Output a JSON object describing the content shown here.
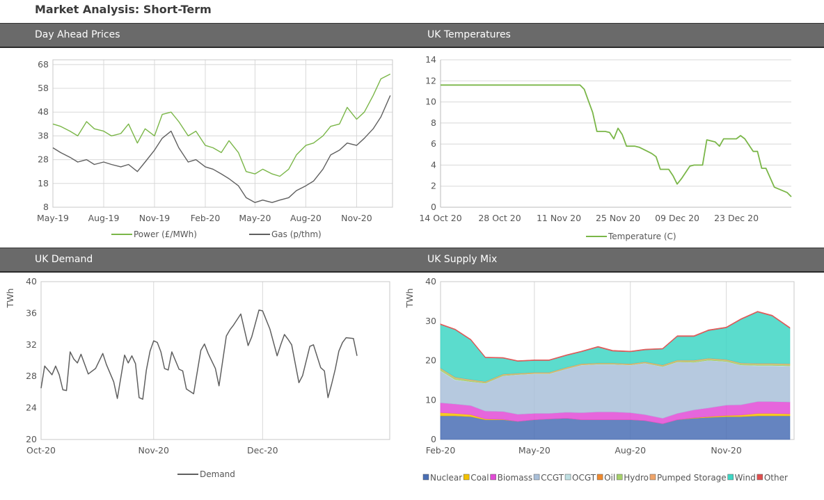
{
  "page": {
    "title": "Market Analysis: Short-Term"
  },
  "chart_data": [
    {
      "id": "prices",
      "type": "line",
      "title": "Day Ahead Prices",
      "x_start": "2019-05-01",
      "x_end": "2021-01-05",
      "y_ticks": [
        8,
        18,
        28,
        38,
        48,
        58,
        68
      ],
      "ylim": [
        8,
        70
      ],
      "x_ticks": [
        {
          "label": "May-19",
          "date": "2019-05-01"
        },
        {
          "label": "Aug-19",
          "date": "2019-08-01"
        },
        {
          "label": "Nov-19",
          "date": "2019-11-01"
        },
        {
          "label": "Feb-20",
          "date": "2020-02-01"
        },
        {
          "label": "May-20",
          "date": "2020-05-01"
        },
        {
          "label": "Aug-20",
          "date": "2020-08-01"
        },
        {
          "label": "Nov-20",
          "date": "2020-11-01"
        }
      ],
      "grid": true,
      "legend": "bottom",
      "series": [
        {
          "name": "Power (£/MWh)",
          "color": "#7ab648",
          "x": [
            "2019-05-01",
            "2019-05-15",
            "2019-06-01",
            "2019-06-15",
            "2019-07-01",
            "2019-07-15",
            "2019-08-01",
            "2019-08-15",
            "2019-09-01",
            "2019-09-15",
            "2019-10-01",
            "2019-10-15",
            "2019-11-01",
            "2019-11-15",
            "2019-12-01",
            "2019-12-15",
            "2020-01-01",
            "2020-01-15",
            "2020-02-01",
            "2020-02-15",
            "2020-03-01",
            "2020-03-15",
            "2020-04-01",
            "2020-04-15",
            "2020-05-01",
            "2020-05-15",
            "2020-06-01",
            "2020-06-15",
            "2020-07-01",
            "2020-07-15",
            "2020-08-01",
            "2020-08-15",
            "2020-09-01",
            "2020-09-15",
            "2020-10-01",
            "2020-10-15",
            "2020-11-01",
            "2020-11-15",
            "2020-12-01",
            "2020-12-15",
            "2021-01-01"
          ],
          "values": [
            43,
            42,
            40,
            38,
            44,
            41,
            40,
            38,
            39,
            43,
            35,
            41,
            38,
            47,
            48,
            44,
            38,
            40,
            34,
            33,
            31,
            36,
            31,
            23,
            22,
            24,
            22,
            21,
            24,
            30,
            34,
            35,
            38,
            42,
            43,
            50,
            45,
            48,
            55,
            62,
            64
          ]
        },
        {
          "name": "Gas (p/thm)",
          "color": "#5f5f5f",
          "x": [
            "2019-05-01",
            "2019-05-15",
            "2019-06-01",
            "2019-06-15",
            "2019-07-01",
            "2019-07-15",
            "2019-08-01",
            "2019-08-15",
            "2019-09-01",
            "2019-09-15",
            "2019-10-01",
            "2019-10-15",
            "2019-11-01",
            "2019-11-15",
            "2019-12-01",
            "2019-12-15",
            "2020-01-01",
            "2020-01-15",
            "2020-02-01",
            "2020-02-15",
            "2020-03-01",
            "2020-03-15",
            "2020-04-01",
            "2020-04-15",
            "2020-05-01",
            "2020-05-15",
            "2020-06-01",
            "2020-06-15",
            "2020-07-01",
            "2020-07-15",
            "2020-08-01",
            "2020-08-15",
            "2020-09-01",
            "2020-09-15",
            "2020-10-01",
            "2020-10-15",
            "2020-11-01",
            "2020-11-15",
            "2020-12-01",
            "2020-12-15",
            "2021-01-01"
          ],
          "values": [
            33,
            31,
            29,
            27,
            28,
            26,
            27,
            26,
            25,
            26,
            23,
            27,
            32,
            37,
            40,
            33,
            27,
            28,
            25,
            24,
            22,
            20,
            17,
            12,
            10,
            11,
            10,
            11,
            12,
            15,
            17,
            19,
            24,
            30,
            32,
            35,
            34,
            37,
            41,
            46,
            55
          ]
        }
      ]
    },
    {
      "id": "temps",
      "type": "line",
      "title": "UK Temperatures",
      "x_start": "2020-10-14",
      "x_end": "2021-01-05",
      "ylim": [
        0,
        14
      ],
      "y_ticks": [
        0,
        2,
        4,
        6,
        8,
        10,
        12,
        14
      ],
      "x_ticks": [
        {
          "label": "14 Oct 20",
          "date": "2020-10-14"
        },
        {
          "label": "28 Oct 20",
          "date": "2020-10-28"
        },
        {
          "label": "11 Nov 20",
          "date": "2020-11-11"
        },
        {
          "label": "25 Nov 20",
          "date": "2020-11-25"
        },
        {
          "label": "09 Dec 20",
          "date": "2020-12-09"
        },
        {
          "label": "23 Dec 20",
          "date": "2020-12-23"
        }
      ],
      "grid": true,
      "legend": "bottom",
      "series": [
        {
          "name": "Temperature (C)",
          "color": "#7ab648",
          "x": [
            "2020-10-14",
            "2020-11-16",
            "2020-11-17",
            "2020-11-18",
            "2020-11-19",
            "2020-11-20",
            "2020-11-22",
            "2020-11-23",
            "2020-11-24",
            "2020-11-25",
            "2020-11-26",
            "2020-11-27",
            "2020-11-29",
            "2020-11-30",
            "2020-12-02",
            "2020-12-03",
            "2020-12-04",
            "2020-12-05",
            "2020-12-07",
            "2020-12-08",
            "2020-12-09",
            "2020-12-10",
            "2020-12-12",
            "2020-12-13",
            "2020-12-15",
            "2020-12-16",
            "2020-12-18",
            "2020-12-19",
            "2020-12-20",
            "2020-12-21",
            "2020-12-23",
            "2020-12-24",
            "2020-12-25",
            "2020-12-27",
            "2020-12-28",
            "2020-12-29",
            "2020-12-30",
            "2021-01-01",
            "2021-01-04",
            "2021-01-05"
          ],
          "values": [
            11.6,
            11.6,
            11.2,
            10.1,
            9.0,
            7.2,
            7.2,
            7.1,
            6.5,
            7.5,
            6.9,
            5.8,
            5.8,
            5.7,
            5.3,
            5.1,
            4.8,
            3.6,
            3.6,
            3.0,
            2.2,
            2.7,
            3.9,
            4.0,
            4.0,
            6.4,
            6.2,
            5.8,
            6.5,
            6.5,
            6.5,
            6.8,
            6.5,
            5.3,
            5.3,
            3.7,
            3.7,
            1.9,
            1.4,
            1.0
          ]
        }
      ]
    },
    {
      "id": "demand",
      "type": "line",
      "title": "UK Demand",
      "ylabel": "TWh",
      "ylim": [
        20,
        40
      ],
      "y_ticks": [
        20,
        24,
        28,
        32,
        36,
        40
      ],
      "x_start": "2020-10-01",
      "x_end": "2021-01-05",
      "x_ticks": [
        {
          "label": "Oct-20",
          "date": "2020-10-01"
        },
        {
          "label": "Nov-20",
          "date": "2020-11-01"
        },
        {
          "label": "Dec-20",
          "date": "2020-12-01"
        }
      ],
      "grid": true,
      "legend": "bottom",
      "series": [
        {
          "name": "Demand",
          "color": "#5f5f5f",
          "x": [
            "2020-10-01",
            "2020-10-02",
            "2020-10-04",
            "2020-10-05",
            "2020-10-06",
            "2020-10-07",
            "2020-10-08",
            "2020-10-09",
            "2020-10-10",
            "2020-10-11",
            "2020-10-12",
            "2020-10-14",
            "2020-10-16",
            "2020-10-18",
            "2020-10-19",
            "2020-10-21",
            "2020-10-22",
            "2020-10-24",
            "2020-10-25",
            "2020-10-26",
            "2020-10-27",
            "2020-10-28",
            "2020-10-29",
            "2020-10-30",
            "2020-10-31",
            "2020-11-01",
            "2020-11-02",
            "2020-11-03",
            "2020-11-04",
            "2020-11-05",
            "2020-11-06",
            "2020-11-08",
            "2020-11-09",
            "2020-11-10",
            "2020-11-12",
            "2020-11-14",
            "2020-11-15",
            "2020-11-16",
            "2020-11-18",
            "2020-11-19",
            "2020-11-21",
            "2020-11-22",
            "2020-11-23",
            "2020-11-25",
            "2020-11-27",
            "2020-11-28",
            "2020-11-30",
            "2020-12-01",
            "2020-12-03",
            "2020-12-05",
            "2020-12-06",
            "2020-12-07",
            "2020-12-08",
            "2020-12-09",
            "2020-12-11",
            "2020-12-12",
            "2020-12-14",
            "2020-12-15",
            "2020-12-17",
            "2020-12-18",
            "2020-12-19",
            "2020-12-20",
            "2020-12-21",
            "2020-12-22",
            "2020-12-23",
            "2020-12-24",
            "2020-12-26",
            "2020-12-27",
            "2020-12-29",
            "2020-12-30",
            "2020-12-31",
            "2021-01-01",
            "2021-01-02",
            "2021-01-03"
          ],
          "values": [
            26.5,
            29.3,
            28.2,
            29.3,
            28.2,
            26.3,
            26.2,
            31.1,
            30.2,
            29.7,
            30.8,
            28.3,
            29.0,
            30.9,
            29.5,
            27.3,
            25.2,
            30.7,
            29.7,
            30.6,
            29.6,
            25.3,
            25.1,
            28.8,
            31.2,
            32.5,
            32.3,
            31.1,
            29.0,
            28.8,
            31.1,
            28.9,
            28.7,
            26.4,
            25.8,
            31.3,
            32.1,
            30.9,
            29.0,
            26.8,
            33.1,
            33.9,
            34.5,
            35.9,
            31.9,
            33.0,
            36.4,
            36.3,
            34.0,
            30.6,
            32.0,
            33.3,
            32.7,
            32.0,
            27.2,
            28.1,
            31.8,
            32.0,
            29.1,
            28.7,
            25.3,
            27.0,
            28.9,
            31.2,
            32.3,
            32.9,
            32.8,
            30.6,
            null,
            null,
            null,
            null,
            null,
            null
          ]
        }
      ]
    },
    {
      "id": "supply",
      "type": "area",
      "title": "UK Supply Mix",
      "ylabel": "TWh",
      "ylim": [
        0,
        40
      ],
      "y_ticks": [
        0,
        10,
        20,
        30,
        40
      ],
      "x_start": "2020-02-01",
      "x_end": "2021-01-05",
      "x_ticks": [
        {
          "label": "Feb-20",
          "date": "2020-02-01"
        },
        {
          "label": "May-20",
          "date": "2020-05-01"
        },
        {
          "label": "Aug-20",
          "date": "2020-08-01"
        },
        {
          "label": "Nov-20",
          "date": "2020-11-01"
        }
      ],
      "grid": true,
      "legend": "bottom",
      "stacked": true,
      "x": [
        "2020-02-01",
        "2020-02-15",
        "2020-03-01",
        "2020-03-15",
        "2020-04-01",
        "2020-04-15",
        "2020-05-01",
        "2020-05-15",
        "2020-06-01",
        "2020-06-15",
        "2020-07-01",
        "2020-07-15",
        "2020-08-01",
        "2020-08-15",
        "2020-09-01",
        "2020-09-15",
        "2020-10-01",
        "2020-10-15",
        "2020-11-01",
        "2020-11-15",
        "2020-12-01",
        "2020-12-15",
        "2021-01-01"
      ],
      "series": [
        {
          "name": "Nuclear",
          "color": "#4a6fb5",
          "values": [
            6,
            6,
            5.8,
            5,
            5,
            4.6,
            5,
            5.2,
            5.4,
            5,
            5,
            5,
            5,
            4.8,
            4,
            5,
            5.4,
            5.6,
            5.8,
            5.8,
            6,
            6,
            6
          ]
        },
        {
          "name": "Coal",
          "color": "#f2c100",
          "values": [
            0.8,
            0.6,
            0.5,
            0.2,
            0.1,
            0,
            0,
            0,
            0,
            0,
            0,
            0,
            0,
            0,
            0,
            0,
            0.1,
            0.2,
            0.3,
            0.4,
            0.6,
            0.6,
            0.5
          ]
        },
        {
          "name": "Biomass",
          "color": "#e24bd6",
          "values": [
            2.5,
            2.4,
            2.3,
            2,
            2,
            1.8,
            1.6,
            1.4,
            1.5,
            1.8,
            2,
            2,
            1.8,
            1.5,
            1.4,
            1.6,
            2,
            2.2,
            2.6,
            2.6,
            3,
            3,
            3
          ]
        },
        {
          "name": "CCGT",
          "color": "#a9bfd9",
          "values": [
            8,
            6,
            6,
            7,
            9,
            10,
            10,
            10,
            11,
            12,
            12,
            12,
            12,
            13,
            13,
            13,
            12,
            12,
            11,
            10,
            9,
            9,
            9
          ]
        },
        {
          "name": "OCGT",
          "color": "#bfe0e3",
          "values": [
            0.2,
            0.2,
            0.1,
            0.1,
            0.1,
            0.1,
            0.1,
            0.1,
            0.1,
            0.1,
            0.1,
            0.1,
            0.1,
            0.1,
            0.1,
            0.1,
            0.1,
            0.1,
            0.1,
            0.1,
            0.2,
            0.2,
            0.2
          ]
        },
        {
          "name": "Oil",
          "color": "#f08a2e",
          "values": [
            0,
            0,
            0,
            0,
            0,
            0,
            0,
            0,
            0,
            0,
            0,
            0,
            0,
            0,
            0,
            0,
            0,
            0,
            0,
            0,
            0,
            0,
            0
          ]
        },
        {
          "name": "Hydro",
          "color": "#a7d16c",
          "values": [
            0.4,
            0.4,
            0.3,
            0.2,
            0.2,
            0.1,
            0.1,
            0.1,
            0.1,
            0.1,
            0.1,
            0.1,
            0.1,
            0.1,
            0.2,
            0.2,
            0.3,
            0.3,
            0.3,
            0.3,
            0.3,
            0.3,
            0.3
          ]
        },
        {
          "name": "Pumped Storage",
          "color": "#f0a56a",
          "values": [
            0.2,
            0.2,
            0.2,
            0.2,
            0.2,
            0.2,
            0.2,
            0.2,
            0.2,
            0.2,
            0.2,
            0.2,
            0.2,
            0.2,
            0.2,
            0.2,
            0.2,
            0.2,
            0.2,
            0.2,
            0.2,
            0.2,
            0.2
          ]
        },
        {
          "name": "Wind",
          "color": "#3ed6c4",
          "values": [
            11,
            12,
            10,
            6,
            4,
            3,
            3,
            3,
            3,
            3,
            4,
            3,
            3,
            3,
            4,
            6,
            6,
            7,
            8,
            11,
            13,
            12,
            9
          ]
        },
        {
          "name": "Other",
          "color": "#e05050",
          "values": [
            0.2,
            0.2,
            0.2,
            0.2,
            0.2,
            0.2,
            0.2,
            0.2,
            0.2,
            0.2,
            0.2,
            0.2,
            0.2,
            0.2,
            0.2,
            0.2,
            0.2,
            0.2,
            0.2,
            0.2,
            0.2,
            0.2,
            0.2
          ]
        }
      ]
    }
  ]
}
